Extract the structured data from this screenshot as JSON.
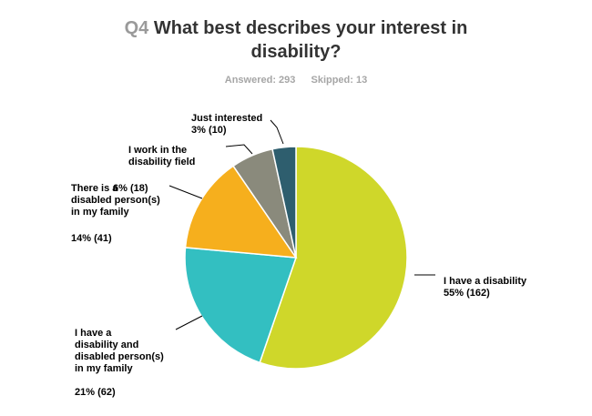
{
  "header": {
    "question_number": "Q4",
    "question_text": "What best describes your interest in disability?",
    "answered": "Answered: 293",
    "skipped": "Skipped: 13"
  },
  "chart_data": {
    "type": "pie",
    "start_angle_deg": 0,
    "direction": "clockwise",
    "slices": [
      {
        "label": "I have a disability",
        "percent": 55,
        "count": 162,
        "data_label": "55% (162)",
        "color": "#cfd72a"
      },
      {
        "label": "I have a disability and disabled person(s) in my family",
        "percent": 21,
        "count": 62,
        "data_label": "21% (62)",
        "color": "#33bfc1"
      },
      {
        "label": "There is a disabled person(s) in my family",
        "percent": 14,
        "count": 41,
        "data_label": "14% (41)",
        "color": "#f6af1d"
      },
      {
        "label": "I work in the disability field",
        "percent": 6,
        "count": 18,
        "data_label": "6% (18)",
        "color": "#8a8a7c"
      },
      {
        "label": "Just interested",
        "percent": 3,
        "count": 10,
        "data_label": "3% (10)",
        "color": "#2e5e6e"
      }
    ]
  }
}
